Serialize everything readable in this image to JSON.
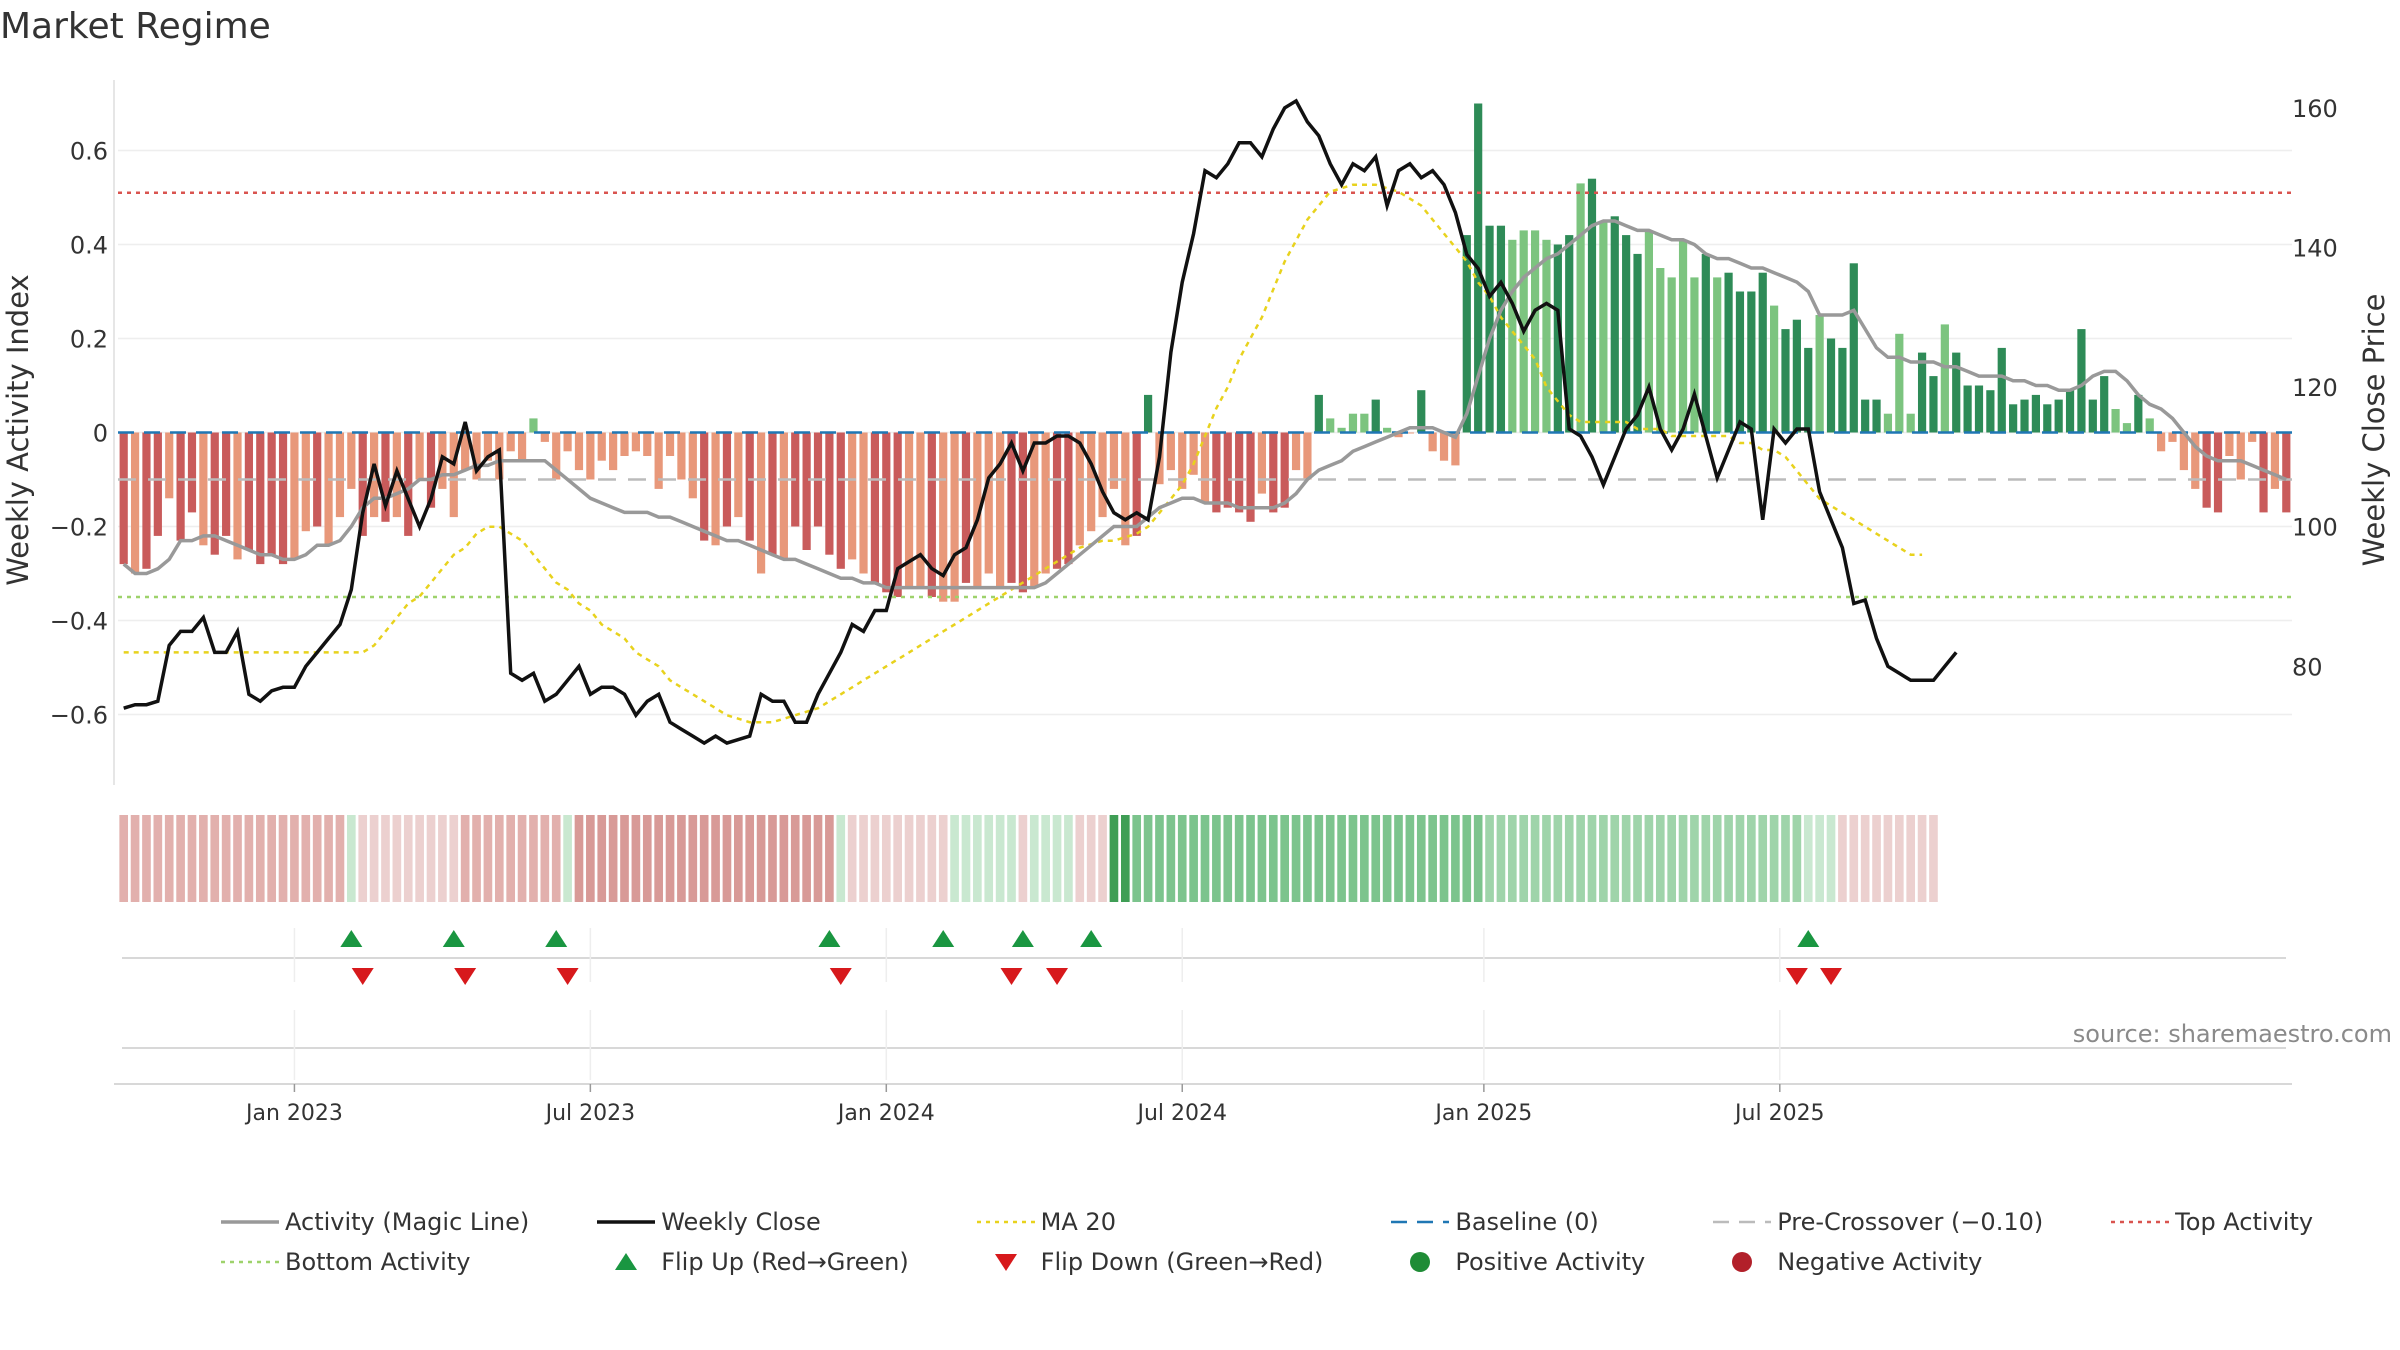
{
  "title": "Market Regime",
  "source": "source: sharemaestro.com",
  "colors": {
    "activity": "#999999",
    "weekly_close": "#111111",
    "ma20": "#e8d21d",
    "baseline": "#1f77b4",
    "pre_crossover": "#bbbbbb",
    "top_activity": "#d9534f",
    "bottom_activity": "#9ed26b",
    "flip_up": "#1a9641",
    "flip_down": "#d7191c",
    "positive": "#1f8c36",
    "negative": "#b2202a"
  },
  "legend": [
    {
      "key": "activity",
      "label": "Activity (Magic Line)",
      "icon": "solid-line"
    },
    {
      "key": "weekly_close",
      "label": "Weekly Close",
      "icon": "solid-line"
    },
    {
      "key": "ma20",
      "label": "MA 20",
      "icon": "dotted-line"
    },
    {
      "key": "baseline",
      "label": "Baseline (0)",
      "icon": "dashed-line"
    },
    {
      "key": "pre_crossover",
      "label": "Pre-Crossover (−0.10)",
      "icon": "dashed-line"
    },
    {
      "key": "top_activity",
      "label": "Top Activity",
      "icon": "dotted-line"
    },
    {
      "key": "bottom_activity",
      "label": "Bottom Activity",
      "icon": "dotted-line"
    },
    {
      "key": "flip_up",
      "label": "Flip Up (Red→Green)",
      "icon": "triangle-up"
    },
    {
      "key": "flip_down",
      "label": "Flip Down (Green→Red)",
      "icon": "triangle-down"
    },
    {
      "key": "positive",
      "label": "Positive Activity",
      "icon": "circle"
    },
    {
      "key": "negative",
      "label": "Negative Activity",
      "icon": "circle"
    }
  ],
  "chart_data": {
    "type": "bar",
    "ylabel": "Weekly Activity Index",
    "y2label": "Weekly Close Price",
    "ylim": [
      -0.75,
      0.75
    ],
    "y2lim": [
      63,
      164
    ],
    "yticks": [
      {
        "v": 0.6,
        "label": "0.6"
      },
      {
        "v": 0.4,
        "label": "0.4"
      },
      {
        "v": 0.2,
        "label": "0.2"
      },
      {
        "v": 0,
        "label": "0"
      },
      {
        "v": -0.2,
        "label": "−0.2"
      },
      {
        "v": -0.4,
        "label": "−0.4"
      },
      {
        "v": -0.6,
        "label": "−0.6"
      }
    ],
    "y2ticks": [
      {
        "v": 160,
        "label": "160"
      },
      {
        "v": 140,
        "label": "140"
      },
      {
        "v": 120,
        "label": "120"
      },
      {
        "v": 100,
        "label": "100"
      },
      {
        "v": 80,
        "label": "80"
      }
    ],
    "xticks": [
      {
        "w": 15.5,
        "label": "Jan 2023"
      },
      {
        "w": 41.5,
        "label": "Jul 2023"
      },
      {
        "w": 67.5,
        "label": "Jan 2024"
      },
      {
        "w": 93.5,
        "label": "Jul 2024"
      },
      {
        "w": 120,
        "label": "Jan 2025"
      },
      {
        "w": 146,
        "label": "Jul 2025"
      }
    ],
    "reference_lines": {
      "baseline": 0,
      "pre_crossover": -0.1,
      "top_activity": 0.51,
      "bottom_activity": -0.35
    },
    "activity_bars": [
      -0.28,
      -0.3,
      -0.29,
      -0.22,
      -0.14,
      -0.23,
      -0.17,
      -0.24,
      -0.26,
      -0.22,
      -0.27,
      -0.25,
      -0.28,
      -0.26,
      -0.28,
      -0.27,
      -0.21,
      -0.2,
      -0.24,
      -0.18,
      -0.12,
      -0.22,
      -0.18,
      -0.19,
      -0.18,
      -0.22,
      -0.1,
      -0.16,
      -0.12,
      -0.18,
      -0.08,
      -0.1,
      -0.06,
      -0.1,
      -0.04,
      -0.06,
      0.03,
      -0.02,
      -0.1,
      -0.04,
      -0.08,
      -0.1,
      -0.06,
      -0.08,
      -0.05,
      -0.04,
      -0.05,
      -0.12,
      -0.05,
      -0.1,
      -0.14,
      -0.23,
      -0.24,
      -0.2,
      -0.18,
      -0.23,
      -0.3,
      -0.26,
      -0.27,
      -0.2,
      -0.25,
      -0.2,
      -0.26,
      -0.29,
      -0.27,
      -0.3,
      -0.32,
      -0.34,
      -0.35,
      -0.33,
      -0.33,
      -0.35,
      -0.36,
      -0.36,
      -0.32,
      -0.33,
      -0.3,
      -0.33,
      -0.32,
      -0.34,
      -0.33,
      -0.3,
      -0.29,
      -0.28,
      -0.24,
      -0.21,
      -0.18,
      -0.12,
      -0.24,
      -0.22,
      0.08,
      -0.11,
      -0.08,
      -0.12,
      -0.09,
      -0.15,
      -0.17,
      -0.16,
      -0.17,
      -0.19,
      -0.13,
      -0.17,
      -0.16,
      -0.08,
      -0.1,
      0.08,
      0.03,
      0.01,
      0.04,
      0.04,
      0.07,
      0.01,
      -0.01,
      0.0,
      0.09,
      -0.04,
      -0.06,
      -0.07,
      0.42,
      0.7,
      0.44,
      0.44,
      0.41,
      0.43,
      0.43,
      0.41,
      0.4,
      0.42,
      0.53,
      0.54,
      0.45,
      0.46,
      0.42,
      0.38,
      0.43,
      0.35,
      0.33,
      0.41,
      0.33,
      0.38,
      0.33,
      0.34,
      0.3,
      0.3,
      0.34,
      0.27,
      0.22,
      0.24,
      0.18,
      0.25,
      0.2,
      0.18,
      0.36,
      0.07,
      0.07,
      0.04,
      0.21,
      0.04,
      0.17,
      0.12,
      0.23,
      0.17,
      0.1,
      0.1,
      0.09,
      0.18,
      0.06,
      0.07,
      0.08,
      0.06,
      0.07,
      0.09,
      0.22,
      0.07,
      0.12,
      0.05,
      0.02,
      0.08,
      0.03,
      -0.04,
      -0.02,
      -0.08,
      -0.12,
      -0.16,
      -0.17,
      -0.05,
      -0.1,
      -0.02,
      -0.17,
      -0.12,
      -0.17
    ],
    "activity_line": [
      -0.28,
      -0.3,
      -0.3,
      -0.29,
      -0.27,
      -0.23,
      -0.23,
      -0.22,
      -0.22,
      -0.23,
      -0.24,
      -0.25,
      -0.26,
      -0.26,
      -0.27,
      -0.27,
      -0.26,
      -0.24,
      -0.24,
      -0.23,
      -0.2,
      -0.16,
      -0.14,
      -0.14,
      -0.13,
      -0.12,
      -0.1,
      -0.1,
      -0.09,
      -0.09,
      -0.08,
      -0.07,
      -0.07,
      -0.06,
      -0.06,
      -0.06,
      -0.06,
      -0.06,
      -0.08,
      -0.1,
      -0.12,
      -0.14,
      -0.15,
      -0.16,
      -0.17,
      -0.17,
      -0.17,
      -0.18,
      -0.18,
      -0.19,
      -0.2,
      -0.21,
      -0.22,
      -0.23,
      -0.23,
      -0.24,
      -0.25,
      -0.26,
      -0.27,
      -0.27,
      -0.28,
      -0.29,
      -0.3,
      -0.31,
      -0.31,
      -0.32,
      -0.32,
      -0.33,
      -0.33,
      -0.33,
      -0.33,
      -0.33,
      -0.33,
      -0.33,
      -0.33,
      -0.33,
      -0.33,
      -0.33,
      -0.33,
      -0.33,
      -0.33,
      -0.32,
      -0.3,
      -0.28,
      -0.26,
      -0.24,
      -0.22,
      -0.2,
      -0.2,
      -0.2,
      -0.18,
      -0.16,
      -0.15,
      -0.14,
      -0.14,
      -0.15,
      -0.15,
      -0.15,
      -0.16,
      -0.16,
      -0.16,
      -0.16,
      -0.15,
      -0.13,
      -0.1,
      -0.08,
      -0.07,
      -0.06,
      -0.04,
      -0.03,
      -0.02,
      -0.01,
      0.0,
      0.01,
      0.01,
      0.01,
      0.0,
      -0.01,
      0.04,
      0.12,
      0.2,
      0.26,
      0.3,
      0.33,
      0.35,
      0.37,
      0.38,
      0.4,
      0.42,
      0.44,
      0.45,
      0.45,
      0.44,
      0.43,
      0.43,
      0.42,
      0.41,
      0.41,
      0.4,
      0.38,
      0.37,
      0.37,
      0.36,
      0.35,
      0.35,
      0.34,
      0.33,
      0.32,
      0.3,
      0.25,
      0.25,
      0.25,
      0.26,
      0.22,
      0.18,
      0.16,
      0.16,
      0.15,
      0.15,
      0.15,
      0.14,
      0.14,
      0.13,
      0.12,
      0.12,
      0.12,
      0.11,
      0.11,
      0.1,
      0.1,
      0.09,
      0.09,
      0.1,
      0.12,
      0.13,
      0.13,
      0.11,
      0.08,
      0.06,
      0.05,
      0.03,
      0.0,
      -0.03,
      -0.05,
      -0.06,
      -0.06,
      -0.06,
      -0.07,
      -0.08,
      -0.09,
      -0.1
    ],
    "weekly_close": [
      74,
      74.5,
      74.5,
      75,
      83,
      85,
      85,
      87,
      82,
      82,
      85,
      76,
      75,
      76.5,
      77,
      77,
      80,
      82,
      84,
      86,
      91,
      102,
      109,
      103,
      108,
      104,
      100,
      104,
      110,
      109,
      115,
      108,
      110,
      111,
      79,
      78,
      79,
      75,
      76,
      78,
      80,
      76,
      77,
      77,
      76,
      73,
      75,
      76,
      72,
      71,
      70,
      69,
      70,
      69,
      69.5,
      70,
      76,
      75,
      75,
      72,
      72,
      76,
      79,
      82,
      86,
      85,
      88,
      88,
      94,
      95,
      96,
      94,
      93,
      96,
      97,
      101,
      107,
      109,
      112,
      108,
      112,
      112,
      113,
      113,
      112,
      109,
      105,
      102,
      101,
      102,
      101,
      110,
      125,
      135,
      142,
      151,
      150,
      152,
      155,
      155,
      153,
      157,
      160,
      161,
      158,
      156,
      152,
      149,
      152,
      151,
      153,
      146,
      151,
      152,
      150,
      151,
      149,
      145,
      139,
      137,
      133,
      135,
      132,
      128,
      131,
      132,
      131,
      114,
      113,
      110,
      106,
      110,
      114,
      116,
      120,
      114,
      111,
      114,
      119,
      113,
      107,
      111,
      115,
      114,
      101,
      114,
      112,
      114,
      114,
      105,
      101,
      97,
      89,
      89.5,
      84,
      80,
      79,
      78,
      78,
      78,
      80,
      82
    ],
    "ma20": [
      82,
      82,
      82,
      82,
      82,
      82,
      82,
      82,
      82,
      82,
      82,
      82,
      82,
      82,
      82,
      82,
      82,
      82,
      82,
      82,
      82,
      82,
      83,
      85,
      87,
      89,
      90,
      92,
      94,
      96,
      97,
      99,
      100,
      100,
      99,
      98,
      96,
      94,
      92,
      91,
      89,
      88,
      86,
      85,
      84,
      82,
      81,
      80,
      78,
      77,
      76,
      75,
      74,
      73,
      72.5,
      72,
      72,
      72,
      72.5,
      73,
      73.5,
      74,
      75,
      76,
      77,
      78,
      79,
      80,
      81,
      82,
      83,
      84,
      85,
      86,
      87,
      88,
      89,
      90,
      91,
      92,
      93,
      94,
      95,
      96,
      97,
      97.5,
      98,
      98,
      98.5,
      99,
      100,
      102,
      104,
      106,
      109,
      113,
      117,
      120,
      124,
      127,
      130,
      134,
      138,
      141,
      144,
      146,
      148,
      148.5,
      149,
      149,
      149,
      148.5,
      148,
      147,
      146,
      144,
      142,
      140,
      138,
      135,
      133,
      130,
      128,
      126,
      124,
      120,
      118,
      116,
      115,
      115,
      115,
      115,
      115,
      114,
      114,
      114,
      113,
      113,
      113,
      113,
      113,
      113,
      112,
      112,
      111,
      111,
      110,
      108,
      106,
      104,
      103,
      102,
      101,
      100,
      99,
      98,
      97,
      96,
      96
    ],
    "regime_strip": [
      -0.25,
      -0.25,
      -0.25,
      -0.25,
      -0.25,
      -0.25,
      -0.25,
      -0.25,
      -0.25,
      -0.25,
      -0.25,
      -0.25,
      -0.25,
      -0.25,
      -0.25,
      -0.25,
      -0.25,
      -0.25,
      -0.25,
      -0.25,
      0.1,
      -0.15,
      -0.15,
      -0.15,
      -0.15,
      -0.15,
      -0.15,
      -0.15,
      -0.15,
      -0.15,
      -0.25,
      -0.25,
      -0.25,
      -0.25,
      -0.25,
      -0.25,
      -0.25,
      -0.25,
      -0.25,
      0.1,
      -0.35,
      -0.35,
      -0.35,
      -0.35,
      -0.35,
      -0.35,
      -0.35,
      -0.35,
      -0.35,
      -0.35,
      -0.35,
      -0.35,
      -0.35,
      -0.35,
      -0.35,
      -0.35,
      -0.35,
      -0.35,
      -0.35,
      -0.35,
      -0.35,
      -0.35,
      -0.35,
      0.1,
      -0.15,
      -0.15,
      -0.15,
      -0.15,
      -0.15,
      -0.15,
      -0.15,
      -0.15,
      -0.15,
      0.1,
      0.1,
      0.1,
      0.1,
      0.1,
      0.1,
      -0.15,
      0.1,
      0.1,
      0.1,
      0.1,
      -0.15,
      -0.15,
      -0.15,
      0.6,
      0.6,
      0.45,
      0.45,
      0.45,
      0.45,
      0.45,
      0.45,
      0.45,
      0.45,
      0.45,
      0.45,
      0.45,
      0.45,
      0.45,
      0.45,
      0.45,
      0.45,
      0.45,
      0.45,
      0.45,
      0.45,
      0.45,
      0.45,
      0.45,
      0.45,
      0.45,
      0.45,
      0.45,
      0.45,
      0.45,
      0.45,
      0.45,
      0.2,
      0.2,
      0.2,
      0.2,
      0.2,
      0.2,
      0.2,
      0.2,
      0.2,
      0.2,
      0.2,
      0.2,
      0.2,
      0.2,
      0.2,
      0.2,
      0.2,
      0.2,
      0.2,
      0.2,
      0.2,
      0.2,
      0.2,
      0.2,
      0.2,
      0.2,
      0.2,
      0.2,
      0.1,
      0.1,
      0.1,
      -0.15,
      -0.15,
      -0.15,
      -0.15,
      -0.15,
      -0.15,
      -0.15,
      -0.15,
      -0.15
    ],
    "flip_up_weeks": [
      20.5,
      29.5,
      38.5,
      62.5,
      72.5,
      79.5,
      85.5,
      148.5
    ],
    "flip_down_weeks": [
      21.5,
      30.5,
      39.5,
      63.5,
      78.5,
      82.5,
      147.5,
      150.5
    ]
  }
}
